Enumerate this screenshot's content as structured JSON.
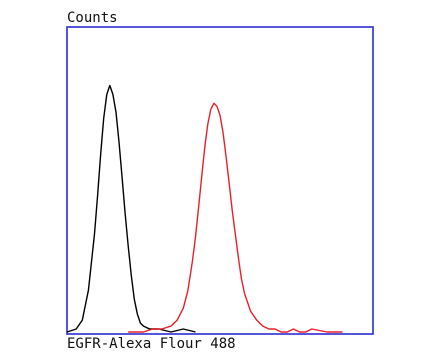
{
  "chart_data": {
    "type": "line",
    "ylabel": "Counts",
    "xlabel": "EGFR-Alexa Flour 488",
    "grid": false,
    "legend": "none",
    "xlim": [
      0,
      100
    ],
    "ylim": [
      0,
      100
    ],
    "frame_color": "#2b2bd6",
    "series": [
      {
        "color": "#000000",
        "x": [
          0,
          3,
          5,
          7,
          9,
          10,
          11,
          12,
          13,
          14,
          15,
          16,
          17,
          18,
          19,
          20,
          21,
          22,
          23,
          24,
          25,
          27,
          30,
          34,
          38,
          42
        ],
        "y": [
          0,
          1,
          4,
          14,
          33,
          46,
          60,
          72,
          80,
          83,
          80,
          74,
          64,
          52,
          40,
          29,
          19,
          11,
          6,
          3,
          2,
          1,
          1,
          0,
          1,
          0
        ]
      },
      {
        "color": "#e8202a",
        "x": [
          20,
          25,
          28,
          31,
          34,
          36,
          38,
          39.5,
          41,
          42,
          43,
          44,
          45,
          46,
          47,
          48,
          49,
          50,
          51,
          52,
          53,
          54,
          55,
          56,
          57,
          58,
          60,
          62,
          64,
          66,
          68,
          70,
          72,
          74,
          76,
          78,
          80,
          85,
          90
        ],
        "y": [
          0,
          0,
          1,
          1,
          2,
          4,
          8,
          14,
          24,
          32,
          42,
          52,
          62,
          70,
          75,
          77,
          76,
          73,
          67,
          59,
          50,
          41,
          33,
          25,
          18,
          13,
          7,
          4,
          2,
          1,
          1,
          0,
          0,
          1,
          0,
          0,
          1,
          0,
          0
        ]
      }
    ]
  }
}
